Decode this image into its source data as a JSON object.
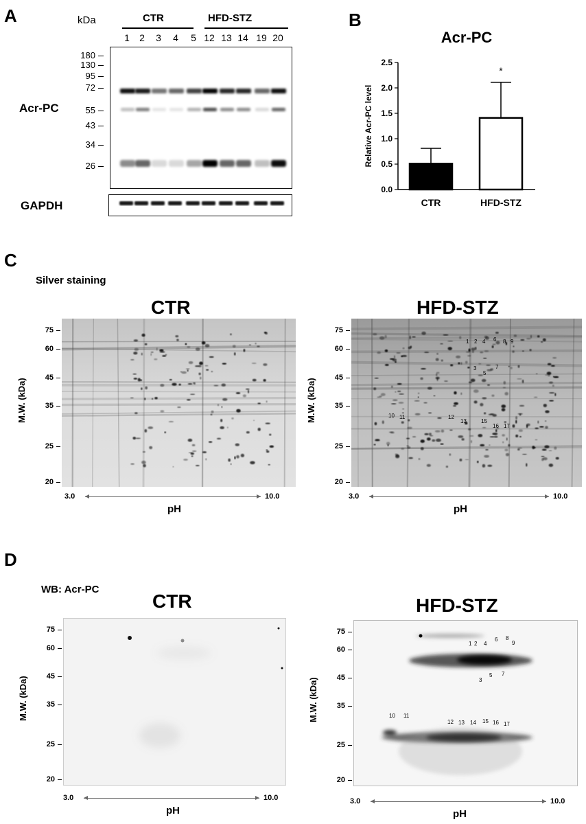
{
  "panels": {
    "A": {
      "letter": "A",
      "unit": "kDa",
      "groups": [
        "CTR",
        "HFD-STZ"
      ],
      "lanes": [
        "1",
        "2",
        "3",
        "4",
        "5",
        "12",
        "13",
        "14",
        "19",
        "20"
      ],
      "markers": [
        "180",
        "130",
        "95",
        "72",
        "55",
        "43",
        "34",
        "26"
      ],
      "blot_label": "Acr-PC",
      "loading_label": "GAPDH"
    },
    "B": {
      "letter": "B",
      "significance": "*"
    },
    "C": {
      "letter": "C",
      "subtitle": "Silver staining",
      "left_title": "CTR",
      "right_title": "HFD-STZ",
      "ylabel": "M.W. (kDa)",
      "xlabel": "pH",
      "ph_low": "3.0",
      "ph_high": "10.0",
      "mw_ticks": [
        "75",
        "60",
        "45",
        "35",
        "25",
        "20"
      ],
      "spots_upper": [
        "1",
        "2",
        "4",
        "6",
        "8",
        "9",
        "3",
        "5",
        "7"
      ],
      "spots_lower": [
        "10",
        "11",
        "12",
        "13",
        "15",
        "16",
        "17"
      ]
    },
    "D": {
      "letter": "D",
      "subtitle": "WB: Acr-PC",
      "left_title": "CTR",
      "right_title": "HFD-STZ",
      "ylabel": "M.W. (kDa)",
      "xlabel": "pH",
      "ph_low": "3.0",
      "ph_high": "10.0",
      "mw_ticks": [
        "75",
        "60",
        "45",
        "35",
        "25",
        "20"
      ],
      "spots_upper": [
        "1",
        "2",
        "4",
        "6",
        "8",
        "9",
        "3",
        "5",
        "7"
      ],
      "spots_lower": [
        "10",
        "11",
        "12",
        "13",
        "14",
        "15",
        "16",
        "17"
      ]
    }
  },
  "chart_data": {
    "type": "bar",
    "title": "Acr-PC",
    "categories": [
      "CTR",
      "HFD-STZ"
    ],
    "values": [
      0.51,
      1.41
    ],
    "errors": [
      0.3,
      0.7
    ],
    "ylabel": "Relative Acr-PC level",
    "ylim": [
      0,
      2.5
    ],
    "yticks": [
      "0.0",
      "0.5",
      "1.0",
      "1.5",
      "2.0",
      "2.5"
    ],
    "colors": [
      "#000000",
      "#ffffff"
    ]
  }
}
